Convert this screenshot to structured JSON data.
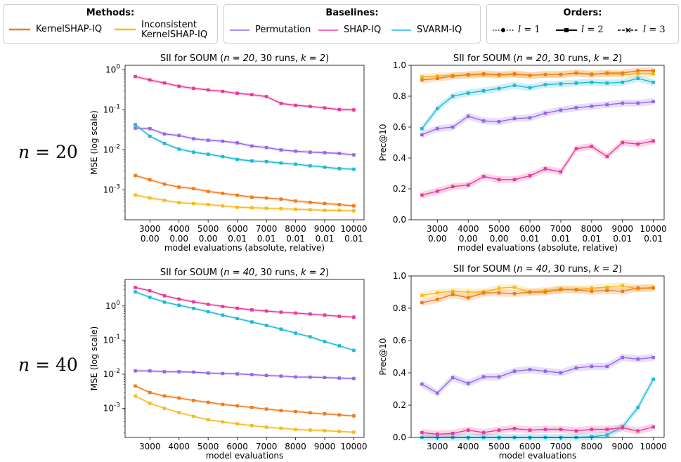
{
  "legend": {
    "methods": {
      "title": "Methods:",
      "items": [
        {
          "label": "KernelSHAP-IQ",
          "color": "#f07a1c"
        },
        {
          "label_line1": "Inconsistent",
          "label_line2": "KernelSHAP-IQ",
          "color": "#f5bb1a"
        }
      ]
    },
    "baselines": {
      "title": "Baselines:",
      "items": [
        {
          "label": "Permutation",
          "color": "#9466e6"
        },
        {
          "label": "SHAP-IQ",
          "color": "#e8399b"
        },
        {
          "label": "SVARM-IQ",
          "color": "#1db8d6"
        }
      ]
    },
    "orders": {
      "title": "Orders:",
      "items": [
        {
          "label_var": "l",
          "label_val": "= 1",
          "style": "dotted",
          "marker": "circle"
        },
        {
          "label_var": "l",
          "label_val": "= 2",
          "style": "solid",
          "marker": "square"
        },
        {
          "label_var": "l",
          "label_val": "= 3",
          "style": "dashed",
          "marker": "x"
        }
      ]
    }
  },
  "row_labels": [
    {
      "var": "n",
      "eq": "= 20"
    },
    {
      "var": "n",
      "eq": "= 40"
    }
  ],
  "chart_data": [
    {
      "type": "line",
      "title_prefix": "SII for SOUM (",
      "title_n": "n = 20",
      "title_suffix": ", 30 runs, ",
      "title_k": "k = 2",
      "title_end": ")",
      "xlabel": "model evaluations (absolute, relative)",
      "ylabel": "MSE (log scale)",
      "yscale": "log",
      "ylim": [
        0.00018,
        1.3
      ],
      "xlim": [
        2150,
        10350
      ],
      "xticks": [
        3000,
        4000,
        5000,
        6000,
        7000,
        8000,
        9000,
        10000
      ],
      "xtick_labels": [
        "3000",
        "4000",
        "5000",
        "6000",
        "7000",
        "8000",
        "9000",
        "10000"
      ],
      "xtick_labels2": [
        "0.00",
        "0.00",
        "0.00",
        "0.01",
        "0.01",
        "0.01",
        "0.01",
        "0.01"
      ],
      "yticks": [
        0.001,
        0.01,
        0.1,
        1
      ],
      "ytick_base": "10",
      "ytick_exps": [
        "-3",
        "-2",
        "-1",
        "0"
      ],
      "x": [
        2500,
        3000,
        3500,
        4000,
        4500,
        5000,
        5500,
        6000,
        6500,
        7000,
        7500,
        8000,
        8500,
        9000,
        9500,
        10000
      ],
      "series": [
        {
          "name": "SHAP-IQ",
          "color": "#e8399b",
          "values": [
            0.68,
            0.56,
            0.47,
            0.39,
            0.345,
            0.315,
            0.29,
            0.26,
            0.24,
            0.215,
            0.145,
            0.13,
            0.122,
            0.112,
            0.102,
            0.1
          ]
        },
        {
          "name": "Permutation",
          "color": "#9466e6",
          "values": [
            0.035,
            0.034,
            0.025,
            0.023,
            0.019,
            0.0175,
            0.0165,
            0.015,
            0.0125,
            0.0115,
            0.01,
            0.0093,
            0.0088,
            0.0085,
            0.0082,
            0.0075
          ]
        },
        {
          "name": "SVARM-IQ",
          "color": "#1db8d6",
          "values": [
            0.043,
            0.022,
            0.0145,
            0.0105,
            0.0088,
            0.0078,
            0.0068,
            0.0058,
            0.0053,
            0.0051,
            0.0047,
            0.0044,
            0.004,
            0.0037,
            0.0034,
            0.0033
          ]
        },
        {
          "name": "KernelSHAP-IQ",
          "color": "#f07a1c",
          "values": [
            0.0023,
            0.0018,
            0.0014,
            0.00118,
            0.00108,
            0.00092,
            0.00082,
            0.00074,
            0.00066,
            0.00063,
            0.00059,
            0.00053,
            0.00049,
            0.00046,
            0.00043,
            0.0004
          ]
        },
        {
          "name": "Inconsistent KernelSHAP-IQ",
          "color": "#f5bb1a",
          "values": [
            0.00075,
            0.00063,
            0.00055,
            0.00048,
            0.00046,
            0.00043,
            0.0004,
            0.00037,
            0.00036,
            0.00035,
            0.00034,
            0.00033,
            0.00032,
            0.00031,
            0.00031,
            0.0003
          ]
        }
      ]
    },
    {
      "type": "line",
      "title_prefix": "SII for SOUM (",
      "title_n": "n = 20",
      "title_suffix": ", 30 runs, ",
      "title_k": "k = 2",
      "title_end": ")",
      "xlabel": "model evaluations (absolute, relative)",
      "ylabel": "Prec@10",
      "yscale": "linear",
      "ylim": [
        0.0,
        1.0
      ],
      "xlim": [
        2150,
        10350
      ],
      "xticks": [
        3000,
        4000,
        5000,
        6000,
        7000,
        8000,
        9000,
        10000
      ],
      "xtick_labels": [
        "3000",
        "4000",
        "5000",
        "6000",
        "7000",
        "8000",
        "9000",
        "10000"
      ],
      "xtick_labels2": [
        "0.00",
        "0.00",
        "0.00",
        "0.01",
        "0.01",
        "0.01",
        "0.01",
        "0.01"
      ],
      "yticks": [
        0.0,
        0.2,
        0.4,
        0.6,
        0.8,
        1.0
      ],
      "ytick_labels": [
        "0.0",
        "0.2",
        "0.4",
        "0.6",
        "0.8",
        "1.0"
      ],
      "x": [
        2500,
        3000,
        3500,
        4000,
        4500,
        5000,
        5500,
        6000,
        6500,
        7000,
        7500,
        8000,
        8500,
        9000,
        9500,
        10000
      ],
      "series": [
        {
          "name": "Inconsistent KernelSHAP-IQ",
          "color": "#f5bb1a",
          "values": [
            0.925,
            0.93,
            0.935,
            0.935,
            0.94,
            0.935,
            0.94,
            0.935,
            0.94,
            0.94,
            0.95,
            0.945,
            0.945,
            0.94,
            0.945,
            0.945
          ]
        },
        {
          "name": "KernelSHAP-IQ",
          "color": "#f07a1c",
          "values": [
            0.905,
            0.915,
            0.93,
            0.94,
            0.945,
            0.94,
            0.945,
            0.935,
            0.94,
            0.94,
            0.95,
            0.94,
            0.95,
            0.95,
            0.965,
            0.965
          ]
        },
        {
          "name": "SVARM-IQ",
          "color": "#1db8d6",
          "values": [
            0.59,
            0.72,
            0.8,
            0.82,
            0.835,
            0.85,
            0.87,
            0.855,
            0.875,
            0.88,
            0.885,
            0.89,
            0.885,
            0.89,
            0.915,
            0.89
          ]
        },
        {
          "name": "Permutation",
          "color": "#9466e6",
          "values": [
            0.55,
            0.59,
            0.6,
            0.67,
            0.64,
            0.635,
            0.655,
            0.66,
            0.69,
            0.71,
            0.725,
            0.735,
            0.745,
            0.755,
            0.755,
            0.765
          ]
        },
        {
          "name": "SHAP-IQ",
          "color": "#e8399b",
          "values": [
            0.16,
            0.185,
            0.215,
            0.225,
            0.28,
            0.26,
            0.26,
            0.285,
            0.33,
            0.31,
            0.46,
            0.475,
            0.41,
            0.5,
            0.49,
            0.51
          ]
        }
      ]
    },
    {
      "type": "line",
      "title_prefix": "SII for SOUM (",
      "title_n": "n = 40",
      "title_suffix": ", 30 runs, ",
      "title_k": "k = 2",
      "title_end": ")",
      "xlabel": "model evaluations",
      "ylabel": "MSE (log scale)",
      "yscale": "log",
      "ylim": [
        0.00014,
        6.0
      ],
      "xlim": [
        2150,
        10350
      ],
      "xticks": [
        3000,
        4000,
        5000,
        6000,
        7000,
        8000,
        9000,
        10000
      ],
      "xtick_labels": [
        "3000",
        "4000",
        "5000",
        "6000",
        "7000",
        "8000",
        "9000",
        "10000"
      ],
      "yticks": [
        0.001,
        0.01,
        0.1,
        1
      ],
      "ytick_base": "10",
      "ytick_exps": [
        "-3",
        "-2",
        "-1",
        "0"
      ],
      "x": [
        2500,
        3000,
        3500,
        4000,
        4500,
        5000,
        5500,
        6000,
        6500,
        7000,
        7500,
        8000,
        8500,
        9000,
        9500,
        10000
      ],
      "series": [
        {
          "name": "SHAP-IQ",
          "color": "#e8399b",
          "values": [
            3.5,
            2.8,
            2.0,
            1.6,
            1.32,
            1.12,
            0.97,
            0.86,
            0.77,
            0.71,
            0.66,
            0.62,
            0.58,
            0.54,
            0.5,
            0.47
          ]
        },
        {
          "name": "SVARM-IQ",
          "color": "#1db8d6",
          "values": [
            2.6,
            1.8,
            1.3,
            1.05,
            0.85,
            0.68,
            0.54,
            0.43,
            0.34,
            0.27,
            0.21,
            0.16,
            0.125,
            0.09,
            0.068,
            0.05
          ]
        },
        {
          "name": "Permutation",
          "color": "#9466e6",
          "values": [
            0.0125,
            0.0125,
            0.0118,
            0.0118,
            0.0115,
            0.0108,
            0.0105,
            0.0102,
            0.0097,
            0.0092,
            0.0088,
            0.0083,
            0.0082,
            0.008,
            0.0077,
            0.0075
          ]
        },
        {
          "name": "KernelSHAP-IQ",
          "color": "#f07a1c",
          "values": [
            0.0045,
            0.0029,
            0.0023,
            0.002,
            0.0017,
            0.0015,
            0.0013,
            0.00118,
            0.00106,
            0.00095,
            0.00086,
            0.0008,
            0.00074,
            0.00069,
            0.00064,
            0.0006
          ]
        },
        {
          "name": "Inconsistent KernelSHAP-IQ",
          "color": "#f5bb1a",
          "values": [
            0.0023,
            0.0014,
            0.001,
            0.00075,
            0.00058,
            0.00046,
            0.0004,
            0.00035,
            0.00031,
            0.00028,
            0.00026,
            0.00024,
            0.00023,
            0.00022,
            0.00021,
            0.0002
          ]
        }
      ]
    },
    {
      "type": "line",
      "title_prefix": "SII for SOUM (",
      "title_n": "n = 40",
      "title_suffix": ", 30 runs, ",
      "title_k": "k = 2",
      "title_end": ")",
      "xlabel": "model evaluations",
      "ylabel": "Prec@10",
      "yscale": "linear",
      "ylim": [
        0.0,
        1.0
      ],
      "xlim": [
        2150,
        10350
      ],
      "xticks": [
        3000,
        4000,
        5000,
        6000,
        7000,
        8000,
        9000,
        10000
      ],
      "xtick_labels": [
        "3000",
        "4000",
        "5000",
        "6000",
        "7000",
        "8000",
        "9000",
        "10000"
      ],
      "yticks": [
        0.0,
        0.2,
        0.4,
        0.6,
        0.8,
        1.0
      ],
      "ytick_labels": [
        "0.0",
        "0.2",
        "0.4",
        "0.6",
        "0.8",
        "1.0"
      ],
      "x": [
        2500,
        3000,
        3500,
        4000,
        4500,
        5000,
        5500,
        6000,
        6500,
        7000,
        7500,
        8000,
        8500,
        9000,
        9500,
        10000
      ],
      "series": [
        {
          "name": "Inconsistent KernelSHAP-IQ",
          "color": "#f5bb1a",
          "values": [
            0.88,
            0.895,
            0.905,
            0.9,
            0.9,
            0.925,
            0.93,
            0.9,
            0.91,
            0.92,
            0.915,
            0.925,
            0.93,
            0.94,
            0.92,
            0.93
          ]
        },
        {
          "name": "KernelSHAP-IQ",
          "color": "#f07a1c",
          "values": [
            0.835,
            0.855,
            0.885,
            0.865,
            0.895,
            0.895,
            0.89,
            0.9,
            0.9,
            0.915,
            0.915,
            0.905,
            0.91,
            0.905,
            0.925,
            0.925
          ]
        },
        {
          "name": "Permutation",
          "color": "#9466e6",
          "values": [
            0.33,
            0.275,
            0.37,
            0.335,
            0.375,
            0.375,
            0.41,
            0.42,
            0.41,
            0.4,
            0.43,
            0.44,
            0.44,
            0.495,
            0.485,
            0.495
          ]
        },
        {
          "name": "SVARM-IQ",
          "color": "#1db8d6",
          "values": [
            0.0,
            0.0,
            0.0,
            0.0,
            0.0,
            0.0,
            0.0,
            0.0,
            0.0,
            0.0,
            0.0,
            0.005,
            0.015,
            0.065,
            0.185,
            0.36
          ]
        },
        {
          "name": "SHAP-IQ",
          "color": "#e8399b",
          "values": [
            0.03,
            0.02,
            0.025,
            0.045,
            0.03,
            0.045,
            0.055,
            0.045,
            0.05,
            0.05,
            0.04,
            0.05,
            0.05,
            0.06,
            0.04,
            0.065
          ]
        }
      ]
    }
  ]
}
